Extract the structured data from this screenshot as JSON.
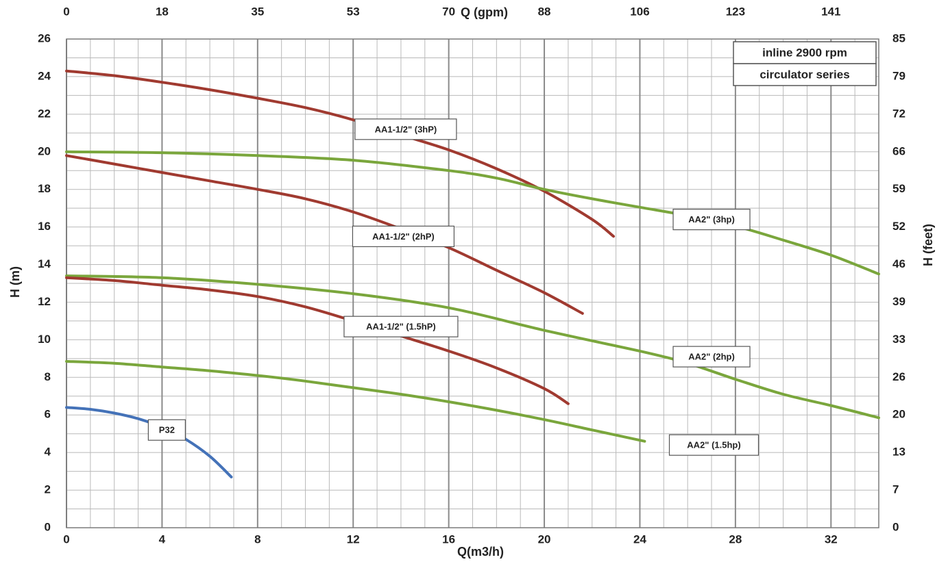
{
  "chart_data": {
    "type": "line",
    "title": "",
    "legend_box": [
      "inline 2900 rpm",
      "circulator series"
    ],
    "x_bottom": {
      "label": "Q(m3/h)",
      "range": [
        0,
        34
      ],
      "ticks": [
        "0",
        "4",
        "8",
        "12",
        "16",
        "20",
        "24",
        "28",
        "32"
      ]
    },
    "x_top": {
      "label": "Q (gpm)",
      "ticks": [
        "0",
        "18",
        "35",
        "53",
        "70",
        "88",
        "106",
        "123",
        "141"
      ]
    },
    "y_left": {
      "label": "H (m)",
      "range": [
        0,
        26
      ],
      "ticks": [
        "0",
        "2",
        "4",
        "6",
        "8",
        "10",
        "12",
        "14",
        "16",
        "18",
        "20",
        "22",
        "24",
        "26"
      ]
    },
    "y_right": {
      "label": "H (feet)",
      "ticks": [
        "0",
        "7",
        "13",
        "20",
        "26",
        "33",
        "39",
        "46",
        "52",
        "59",
        "66",
        "72",
        "79",
        "85"
      ]
    },
    "grid": true,
    "series": [
      {
        "name": "AA1-1/2\" (3hP)",
        "color": "#a03a30",
        "points": [
          [
            0,
            24.3
          ],
          [
            2,
            24.05
          ],
          [
            4,
            23.7
          ],
          [
            6,
            23.3
          ],
          [
            8,
            22.85
          ],
          [
            10,
            22.35
          ],
          [
            12,
            21.7
          ],
          [
            14,
            20.9
          ],
          [
            16,
            20.1
          ],
          [
            18,
            19.1
          ],
          [
            20,
            17.9
          ],
          [
            22,
            16.4
          ],
          [
            22.9,
            15.5
          ]
        ]
      },
      {
        "name": "AA2\" (3hp)",
        "color": "#7aa63c",
        "points": [
          [
            0,
            20.0
          ],
          [
            4,
            19.95
          ],
          [
            8,
            19.8
          ],
          [
            12,
            19.55
          ],
          [
            16,
            19.0
          ],
          [
            18,
            18.6
          ],
          [
            20,
            18.0
          ],
          [
            22,
            17.5
          ],
          [
            24,
            17.05
          ],
          [
            26,
            16.6
          ],
          [
            28,
            16.05
          ],
          [
            30,
            15.3
          ],
          [
            32,
            14.5
          ],
          [
            34,
            13.5
          ]
        ]
      },
      {
        "name": "AA1-1/2\" (2hP)",
        "color": "#a03a30",
        "points": [
          [
            0,
            19.8
          ],
          [
            2,
            19.35
          ],
          [
            4,
            18.9
          ],
          [
            6,
            18.45
          ],
          [
            8,
            18.0
          ],
          [
            10,
            17.5
          ],
          [
            12,
            16.8
          ],
          [
            14,
            15.9
          ],
          [
            16,
            14.9
          ],
          [
            18,
            13.7
          ],
          [
            20,
            12.5
          ],
          [
            21.6,
            11.4
          ]
        ]
      },
      {
        "name": "AA2\" (2hp)",
        "color": "#7aa63c",
        "points": [
          [
            0,
            13.4
          ],
          [
            4,
            13.3
          ],
          [
            8,
            12.95
          ],
          [
            12,
            12.45
          ],
          [
            16,
            11.7
          ],
          [
            20,
            10.5
          ],
          [
            24,
            9.4
          ],
          [
            26,
            8.75
          ],
          [
            28,
            7.9
          ],
          [
            30,
            7.1
          ],
          [
            32,
            6.5
          ],
          [
            34,
            5.85
          ]
        ]
      },
      {
        "name": "AA1-1/2\" (1.5hP)",
        "color": "#a03a30",
        "points": [
          [
            0,
            13.3
          ],
          [
            2,
            13.15
          ],
          [
            4,
            12.9
          ],
          [
            6,
            12.65
          ],
          [
            8,
            12.3
          ],
          [
            10,
            11.75
          ],
          [
            12,
            11.0
          ],
          [
            14,
            10.2
          ],
          [
            16,
            9.4
          ],
          [
            18,
            8.5
          ],
          [
            20,
            7.4
          ],
          [
            21,
            6.6
          ]
        ]
      },
      {
        "name": "AA2\" (1.5hp)",
        "color": "#7aa63c",
        "points": [
          [
            0,
            8.85
          ],
          [
            2,
            8.75
          ],
          [
            4,
            8.55
          ],
          [
            6,
            8.35
          ],
          [
            8,
            8.1
          ],
          [
            10,
            7.8
          ],
          [
            12,
            7.45
          ],
          [
            14,
            7.1
          ],
          [
            16,
            6.7
          ],
          [
            18,
            6.25
          ],
          [
            20,
            5.75
          ],
          [
            22,
            5.2
          ],
          [
            24.2,
            4.6
          ]
        ]
      },
      {
        "name": "P32",
        "color": "#4472b8",
        "points": [
          [
            0,
            6.4
          ],
          [
            1,
            6.3
          ],
          [
            2,
            6.1
          ],
          [
            3,
            5.8
          ],
          [
            4,
            5.35
          ],
          [
            5,
            4.7
          ],
          [
            6,
            3.8
          ],
          [
            6.9,
            2.7
          ]
        ]
      }
    ],
    "curve_labels": [
      {
        "text": "AA1-1/2\" (3hP)",
        "at": [
          14.2,
          21.2
        ]
      },
      {
        "text": "AA2\" (3hp)",
        "at": [
          27.0,
          16.4
        ]
      },
      {
        "text": "AA1-1/2\" (2hP)",
        "at": [
          14.1,
          15.5
        ]
      },
      {
        "text": "AA2\" (2hp)",
        "at": [
          27.0,
          9.1
        ]
      },
      {
        "text": "AA1-1/2\" (1.5hP)",
        "at": [
          14.0,
          10.7
        ]
      },
      {
        "text": "AA2\" (1.5hp)",
        "at": [
          27.1,
          4.4
        ]
      },
      {
        "text": "P32",
        "at": [
          4.2,
          5.2
        ]
      }
    ]
  }
}
